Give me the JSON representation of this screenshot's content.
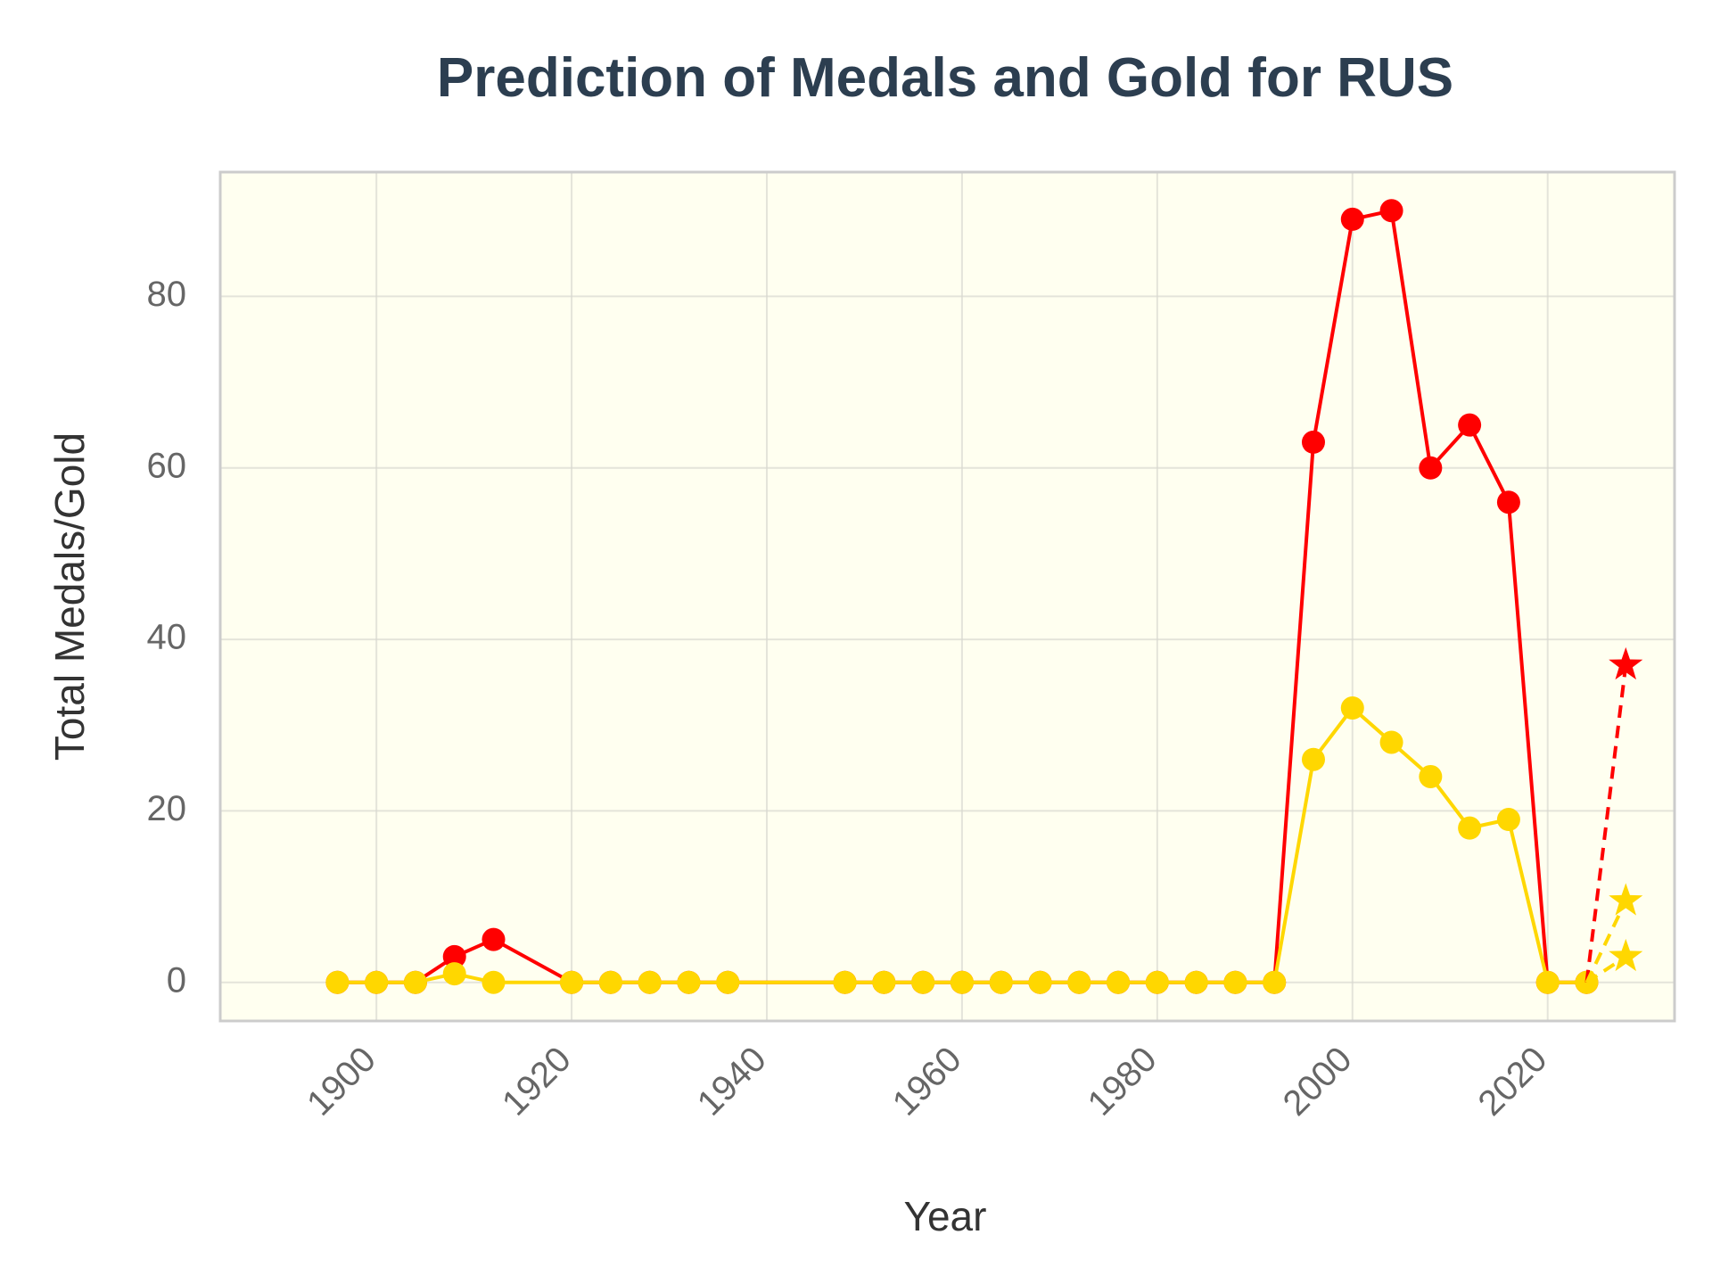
{
  "chart_data": {
    "type": "line",
    "title": "Prediction of Medals and Gold for RUS",
    "xlabel": "Year",
    "ylabel": "Total Medals/Gold",
    "xlim": [
      1884,
      2033
    ],
    "ylim": [
      -4.5,
      94.5
    ],
    "xticks": [
      1900,
      1920,
      1940,
      1960,
      1980,
      2000,
      2020
    ],
    "yticks": [
      0,
      20,
      40,
      60,
      80
    ],
    "grid": true,
    "background": "#fffff0",
    "series": [
      {
        "color": "#ff0000",
        "style": "solid",
        "marker": "circle",
        "x": [
          1896,
          1900,
          1904,
          1908,
          1912,
          1920,
          1924,
          1928,
          1932,
          1936,
          1948,
          1952,
          1956,
          1960,
          1964,
          1968,
          1972,
          1976,
          1980,
          1984,
          1988,
          1992,
          1996,
          2000,
          2004,
          2008,
          2012,
          2016,
          2020,
          2024
        ],
        "y": [
          0,
          0,
          0,
          3,
          5,
          0,
          0,
          0,
          0,
          0,
          0,
          0,
          0,
          0,
          0,
          0,
          0,
          0,
          0,
          0,
          0,
          0,
          63,
          89,
          90,
          60,
          65,
          56,
          0,
          0
        ]
      },
      {
        "color": "#ffd700",
        "style": "solid",
        "marker": "circle",
        "x": [
          1896,
          1900,
          1904,
          1908,
          1912,
          1920,
          1924,
          1928,
          1932,
          1936,
          1948,
          1952,
          1956,
          1960,
          1964,
          1968,
          1972,
          1976,
          1980,
          1984,
          1988,
          1992,
          1996,
          2000,
          2004,
          2008,
          2012,
          2016,
          2020,
          2024
        ],
        "y": [
          0,
          0,
          0,
          1,
          0,
          0,
          0,
          0,
          0,
          0,
          0,
          0,
          0,
          0,
          0,
          0,
          0,
          0,
          0,
          0,
          0,
          0,
          26,
          32,
          28,
          24,
          18,
          19,
          0,
          0
        ]
      },
      {
        "color": "#ff0000",
        "style": "dashed",
        "marker": "star",
        "x": [
          2024,
          2028
        ],
        "y": [
          0,
          37
        ]
      },
      {
        "color": "#ffd700",
        "style": "dashed",
        "marker": "star",
        "x": [
          2024,
          2028
        ],
        "y": [
          0,
          9.5
        ]
      },
      {
        "color": "#ffd700",
        "style": "dashed",
        "marker": "star",
        "x": [
          2024,
          2028
        ],
        "y": [
          0,
          3
        ]
      }
    ]
  }
}
